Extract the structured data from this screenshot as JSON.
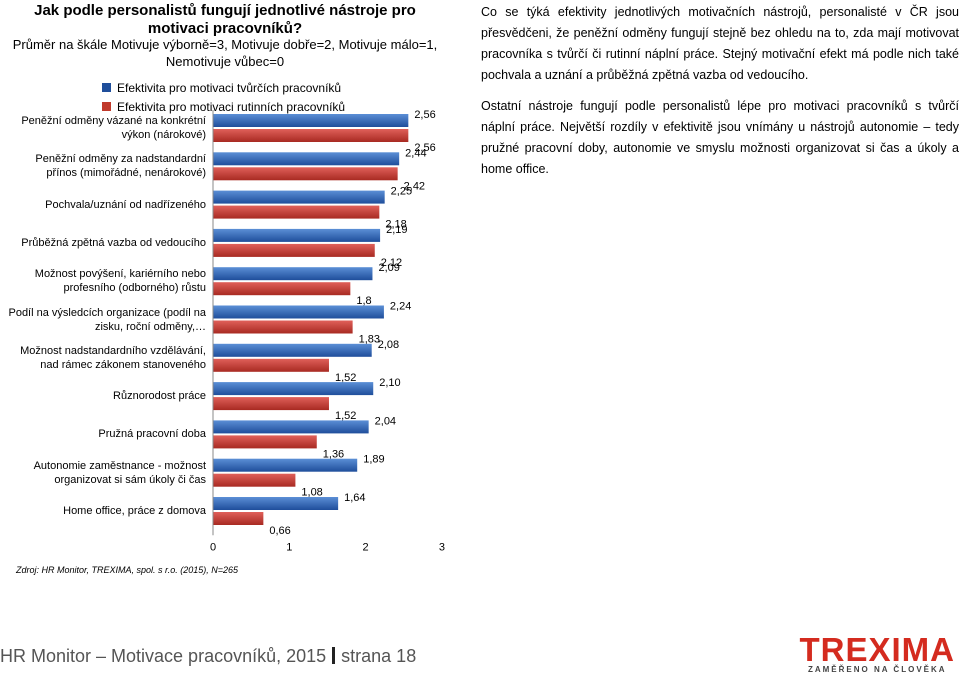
{
  "chart_data": {
    "type": "bar",
    "orientation": "horizontal",
    "title": "Jak podle personalistů fungují jednotlivé nástroje pro motivaci pracovníků?",
    "subtitle": "Průměr na škále Motivuje výborně=3, Motivuje dobře=2, Motivuje málo=1, Nemotivuje vůbec=0",
    "categories": [
      "Peněžní odměny vázané na konkrétní výkon (nárokové)",
      "Peněžní odměny za nadstandardní přínos (mimořádné, nenárokové)",
      "Pochvala/uznání od nadřízeného",
      "Průběžná zpětná vazba od vedoucího",
      "Možnost povýšení, kariérního nebo profesního (odborného) růstu",
      "Podíl na výsledcích organizace (podíl na zisku, roční odměny,…",
      "Možnost nadstandardního vzdělávání, nad rámec zákonem stanoveného",
      "Různorodost práce",
      "Pružná pracovní doba",
      "Autonomie zaměstnance - možnost organizovat si sám úkoly či čas",
      "Home office, práce z domova"
    ],
    "series": [
      {
        "name": "Efektivita pro motivaci tvůrčích pracovníků",
        "color": "#1f4e9b",
        "values": [
          2.56,
          2.44,
          2.25,
          2.19,
          2.09,
          2.24,
          2.08,
          2.1,
          2.04,
          1.89,
          1.64
        ]
      },
      {
        "name": "Efektivita pro motivaci rutinních pracovníků",
        "color": "#c0392b",
        "values": [
          2.56,
          2.42,
          2.18,
          2.12,
          1.8,
          1.83,
          1.52,
          1.52,
          1.36,
          1.08,
          0.66
        ]
      }
    ],
    "value_labels": [
      [
        "2,56",
        "2,44",
        "2,25",
        "2,19",
        "2,09",
        "2,24",
        "2,08",
        "2,10",
        "2,04",
        "1,89",
        "1,64"
      ],
      [
        "2,56",
        "2,42",
        "2,18",
        "2,12",
        "1,8",
        "1,83",
        "1,52",
        "1,52",
        "1,36",
        "1,08",
        "0,66"
      ]
    ],
    "xlim": [
      0,
      3
    ],
    "xticks": [
      "0",
      "1",
      "2",
      "3"
    ],
    "grid": false,
    "legend_position": "top"
  },
  "source": "Zdroj: HR Monitor, TREXIMA, spol. s r.o. (2015), N=265",
  "right_text": {
    "p1": "Co se týká efektivity jednotlivých motivačních nástrojů, personalisté v ČR jsou přesvědčeni, že peněžní odměny fungují stejně bez ohledu na to, zda mají motivovat pracovníka s tvůrčí či rutinní náplní práce. Stejný motivační efekt má podle nich také pochvala a uznání a průběžná zpětná vazba od vedoucího.",
    "p2": "Ostatní nástroje fungují podle personalistů lépe pro motivaci pracovníků s tvůrčí náplní práce. Největší rozdíly v efektivitě jsou vnímány u nástrojů autonomie – tedy pružné pracovní doby, autonomie ve smyslu možnosti organizovat si čas a úkoly a home office."
  },
  "footer": {
    "left": "HR Monitor – Motivace pracovníků, 2015",
    "right": "strana 18"
  },
  "logo": {
    "name": "TREXIMA",
    "tagline": "ZAMĚŘENO NA ČLOVĚKA"
  }
}
